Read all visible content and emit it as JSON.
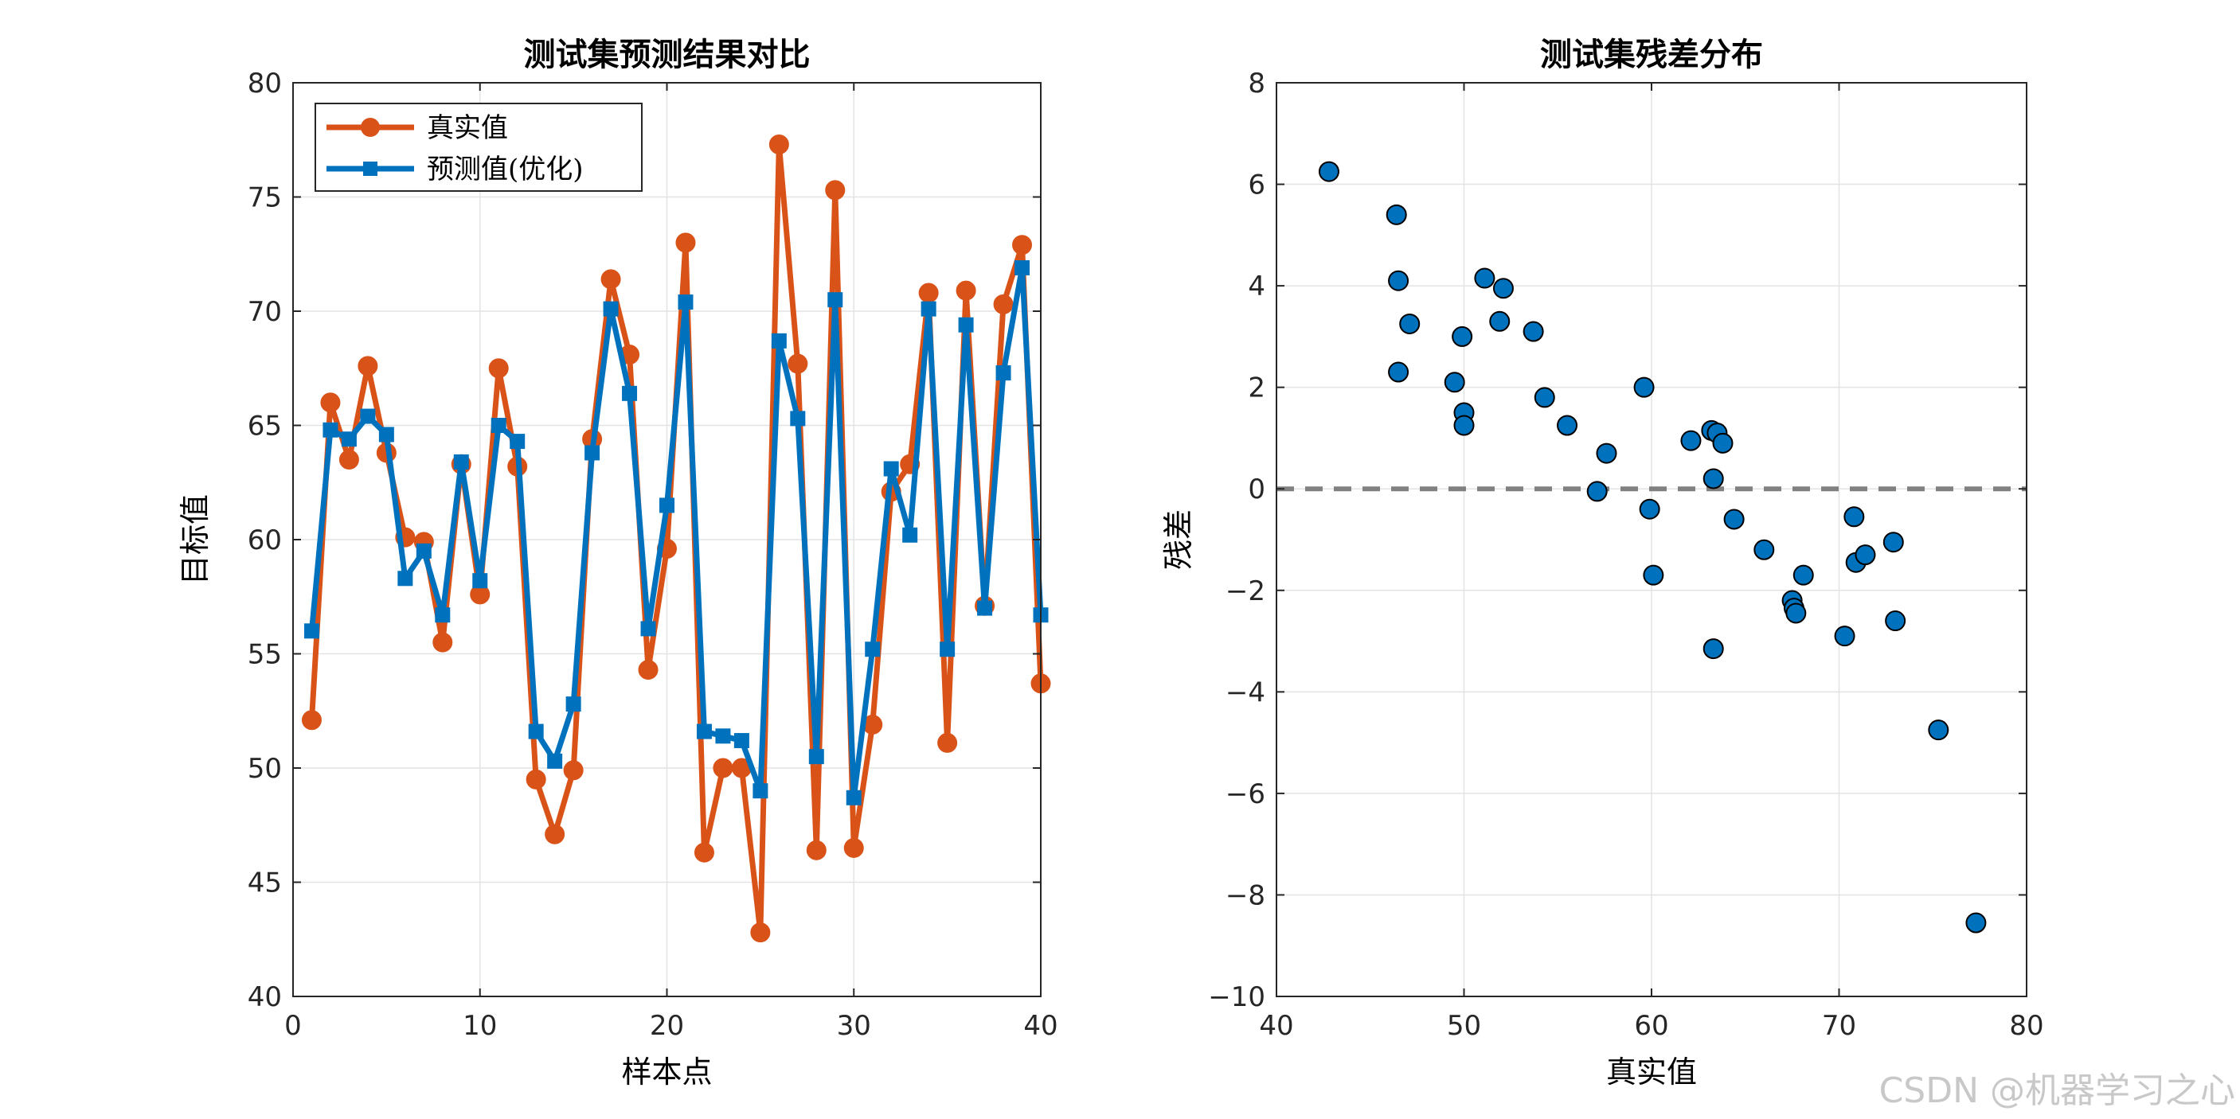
{
  "chart_data": [
    {
      "type": "line",
      "title": "测试集预测结果对比",
      "xlabel": "样本点",
      "ylabel": "目标值",
      "xlim": [
        0,
        40
      ],
      "ylim": [
        40,
        80
      ],
      "xticks": [
        0,
        10,
        20,
        30,
        40
      ],
      "yticks": [
        40,
        45,
        50,
        55,
        60,
        65,
        70,
        75,
        80
      ],
      "grid": true,
      "legend_position": "top-left",
      "x": [
        1,
        2,
        3,
        4,
        5,
        6,
        7,
        8,
        9,
        10,
        11,
        12,
        13,
        14,
        15,
        16,
        17,
        18,
        19,
        20,
        21,
        22,
        23,
        24,
        25,
        26,
        27,
        28,
        29,
        30,
        31,
        32,
        33,
        34,
        35,
        36,
        37,
        38,
        39,
        40
      ],
      "series": [
        {
          "name": "真实值",
          "color": "#D95319",
          "marker": "circle",
          "values": [
            52.1,
            66.0,
            63.5,
            67.6,
            63.8,
            60.1,
            59.9,
            55.5,
            63.3,
            57.6,
            67.5,
            63.2,
            49.5,
            47.1,
            49.9,
            64.4,
            71.4,
            68.1,
            54.3,
            59.6,
            73.0,
            46.3,
            50.0,
            50.0,
            42.8,
            77.3,
            67.7,
            46.4,
            75.3,
            46.5,
            51.9,
            62.1,
            63.3,
            70.8,
            51.1,
            70.9,
            57.1,
            70.3,
            72.9,
            53.7
          ]
        },
        {
          "name": "预测值(优化)",
          "color": "#0072BD",
          "marker": "square",
          "values": [
            56.0,
            64.8,
            64.4,
            65.4,
            64.6,
            58.3,
            59.5,
            56.7,
            63.4,
            58.2,
            65.0,
            64.3,
            51.6,
            50.3,
            52.8,
            63.8,
            70.1,
            66.4,
            56.1,
            61.5,
            70.4,
            51.6,
            51.4,
            51.2,
            49.0,
            68.7,
            65.3,
            50.5,
            70.5,
            48.7,
            55.2,
            63.1,
            60.2,
            70.1,
            55.2,
            69.4,
            57.0,
            67.3,
            71.9,
            56.7
          ]
        }
      ]
    },
    {
      "type": "scatter",
      "title": "测试集残差分布",
      "xlabel": "真实值",
      "ylabel": "残差",
      "xlim": [
        40,
        80
      ],
      "ylim": [
        -10,
        8
      ],
      "xticks": [
        40,
        50,
        60,
        70,
        80
      ],
      "yticks": [
        -10,
        -8,
        -6,
        -4,
        -2,
        0,
        2,
        4,
        6,
        8
      ],
      "grid": true,
      "reference_line": {
        "y": 0,
        "style": "dashed",
        "color": "#808080"
      },
      "marker_color": "#0072BD",
      "points": [
        [
          42.8,
          6.25
        ],
        [
          46.4,
          5.4
        ],
        [
          46.5,
          4.1
        ],
        [
          46.5,
          2.3
        ],
        [
          47.1,
          3.25
        ],
        [
          49.5,
          2.1
        ],
        [
          49.9,
          3.0
        ],
        [
          50.0,
          1.5
        ],
        [
          50.0,
          1.25
        ],
        [
          51.1,
          4.15
        ],
        [
          51.9,
          3.3
        ],
        [
          52.1,
          3.95
        ],
        [
          53.7,
          3.1
        ],
        [
          54.3,
          1.8
        ],
        [
          55.5,
          1.25
        ],
        [
          57.1,
          -0.05
        ],
        [
          57.6,
          0.7
        ],
        [
          59.6,
          2.0
        ],
        [
          59.9,
          -0.4
        ],
        [
          60.1,
          -1.7
        ],
        [
          62.1,
          0.95
        ],
        [
          63.2,
          1.15
        ],
        [
          63.3,
          0.2
        ],
        [
          63.3,
          -3.15
        ],
        [
          63.5,
          1.1
        ],
        [
          63.8,
          0.9
        ],
        [
          64.4,
          -0.6
        ],
        [
          66.0,
          -1.2
        ],
        [
          67.5,
          -2.2
        ],
        [
          67.6,
          -2.35
        ],
        [
          67.7,
          -2.45
        ],
        [
          68.1,
          -1.7
        ],
        [
          70.3,
          -2.9
        ],
        [
          70.8,
          -0.55
        ],
        [
          70.9,
          -1.45
        ],
        [
          71.4,
          -1.3
        ],
        [
          72.9,
          -1.05
        ],
        [
          73.0,
          -2.6
        ],
        [
          75.3,
          -4.75
        ],
        [
          77.3,
          -8.55
        ]
      ]
    }
  ],
  "watermark": "CSDN @机器学习之心"
}
